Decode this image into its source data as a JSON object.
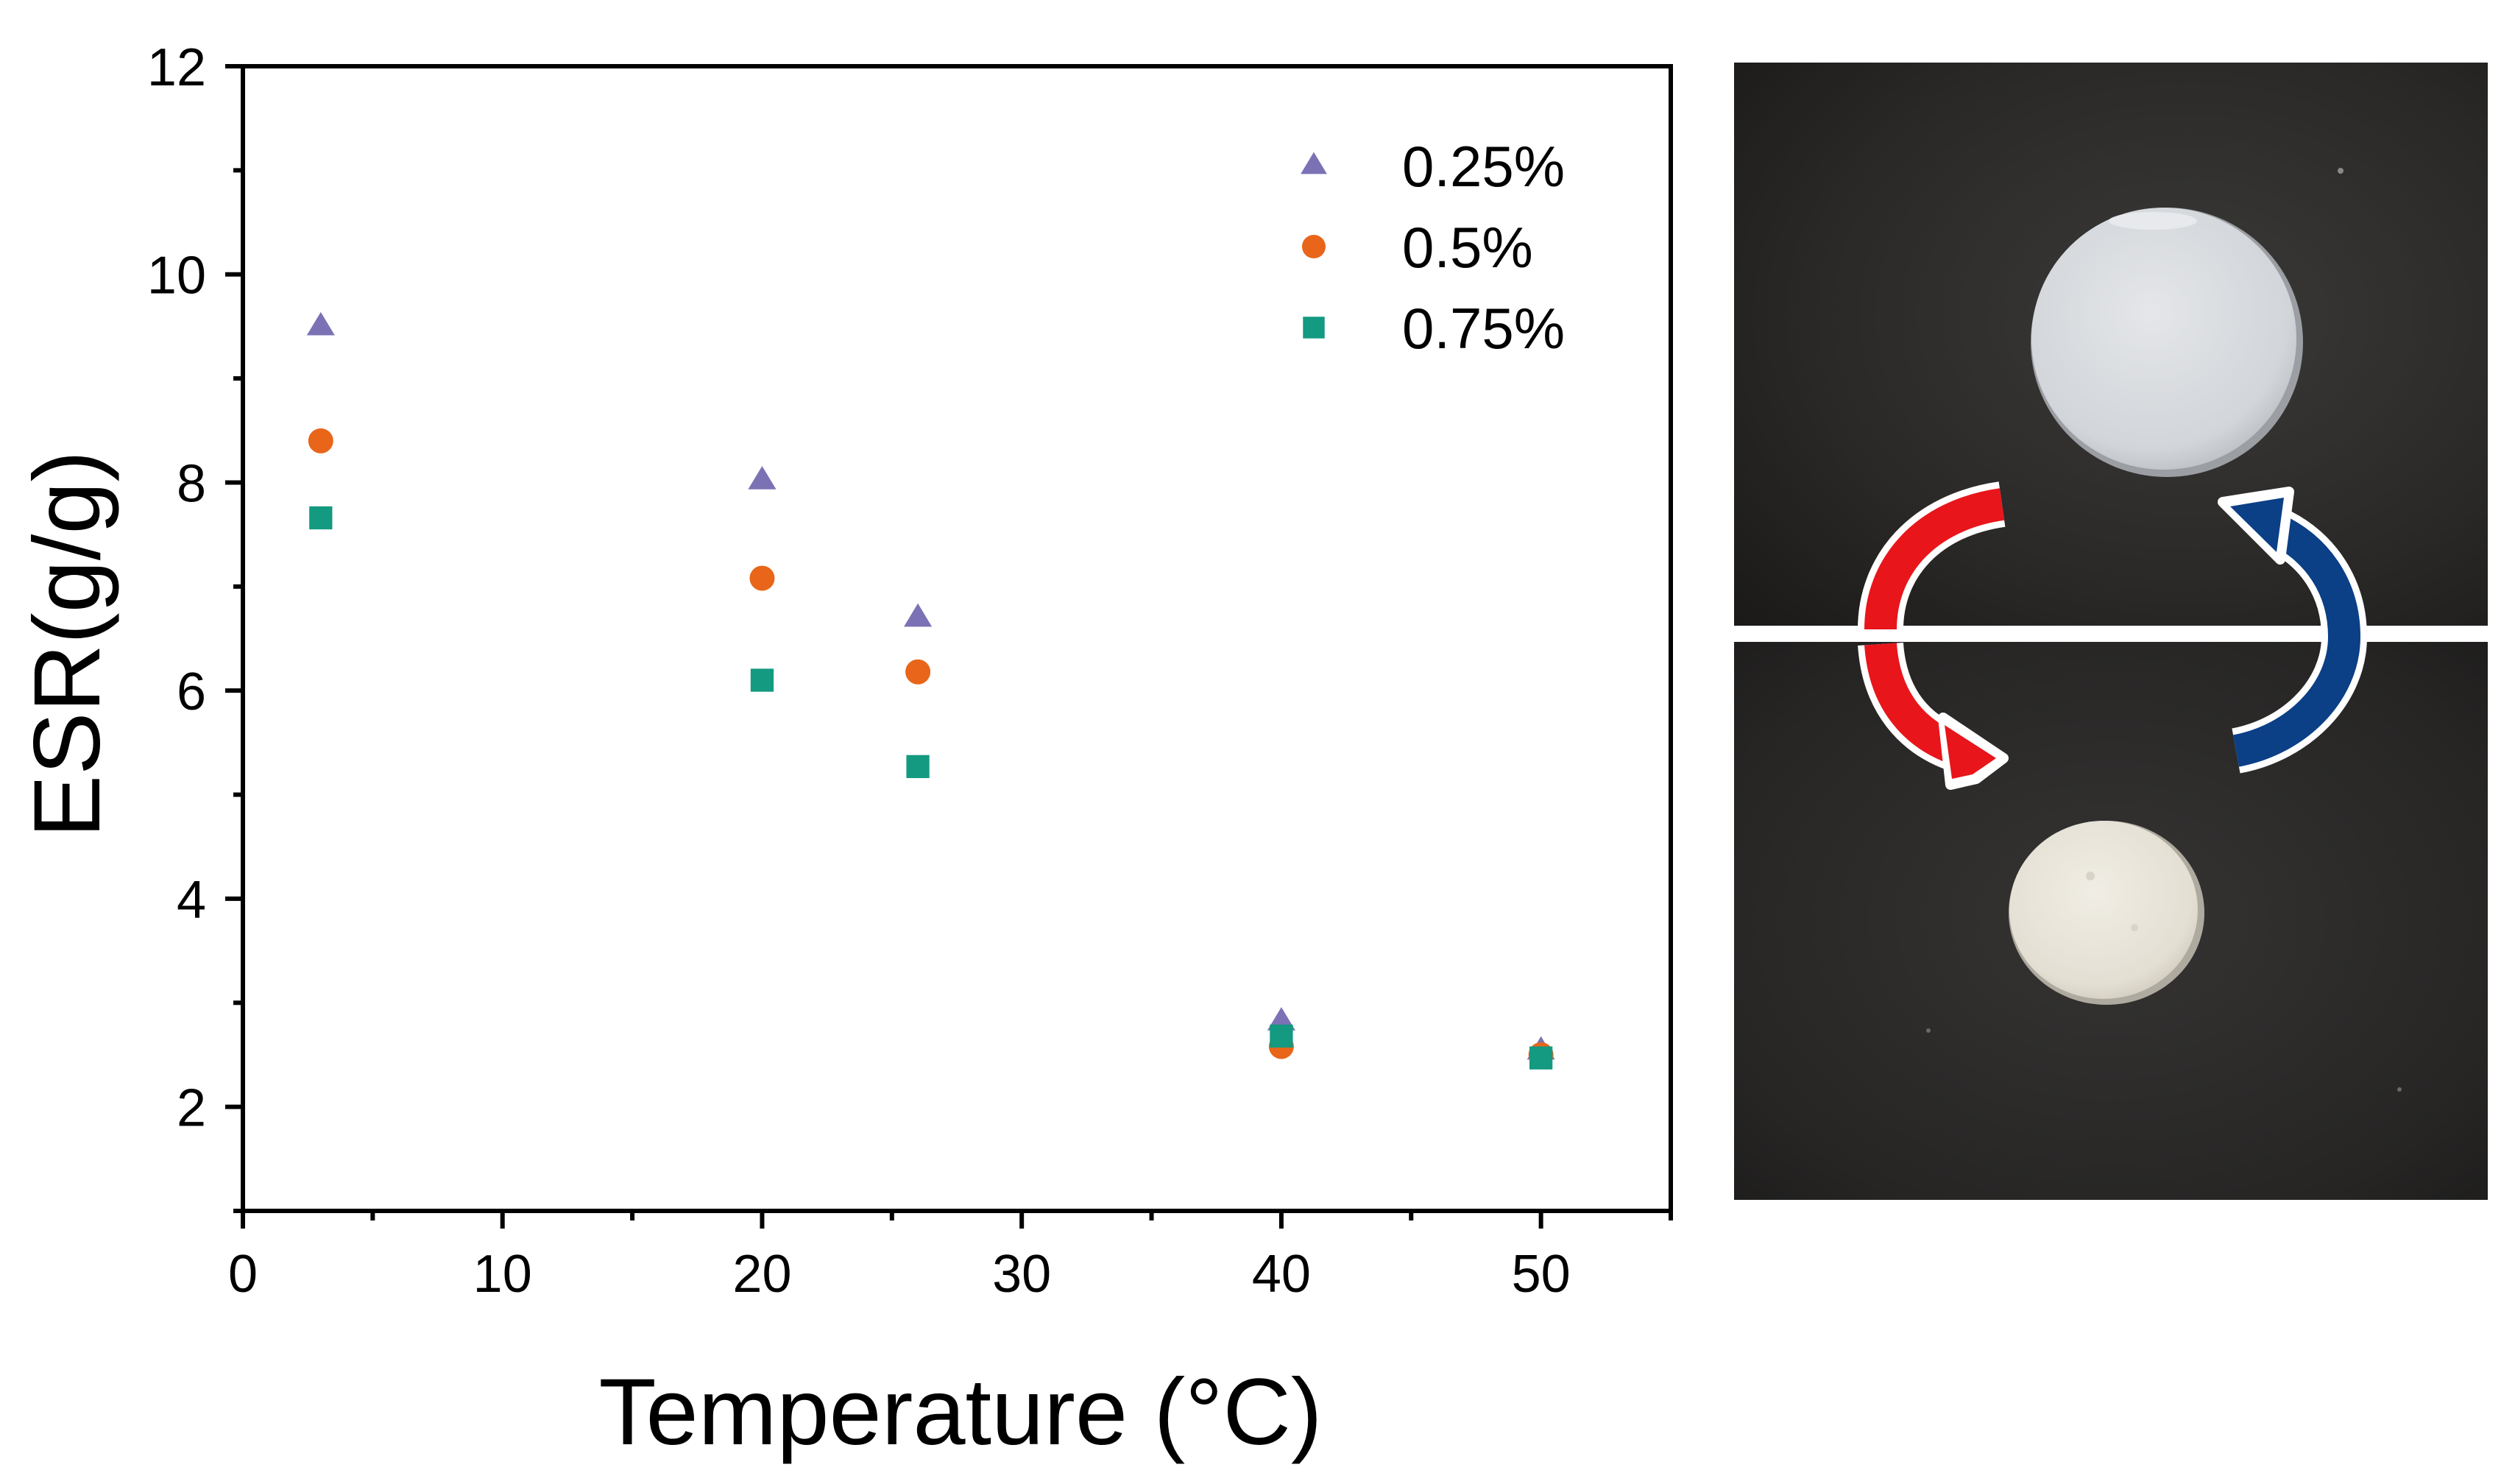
{
  "chart_data": {
    "type": "scatter",
    "xlabel": "Temperature (°C)",
    "ylabel": "ESR(g/g)",
    "xlim": [
      0,
      55
    ],
    "ylim": [
      1,
      12
    ],
    "x_ticks": [
      0,
      10,
      20,
      30,
      40,
      50
    ],
    "y_ticks": [
      2,
      4,
      6,
      8,
      10,
      12
    ],
    "grid": false,
    "legend_position": "top-right",
    "series": [
      {
        "name": "0.25%",
        "marker": "triangle",
        "color": "#7b72b5",
        "points": [
          [
            3,
            9.5
          ],
          [
            20,
            8.02
          ],
          [
            26,
            6.7
          ],
          [
            40,
            2.82
          ],
          [
            50,
            2.54
          ]
        ]
      },
      {
        "name": "0.5%",
        "marker": "circle",
        "color": "#e8651a",
        "points": [
          [
            3,
            8.4
          ],
          [
            20,
            7.08
          ],
          [
            26,
            6.18
          ],
          [
            40,
            2.58
          ],
          [
            50,
            2.5
          ]
        ]
      },
      {
        "name": "0.75%",
        "marker": "square",
        "color": "#139a80",
        "points": [
          [
            3,
            7.66
          ],
          [
            20,
            6.1
          ],
          [
            26,
            5.27
          ],
          [
            40,
            2.68
          ],
          [
            50,
            2.47
          ]
        ]
      }
    ]
  },
  "photos": {
    "top": {
      "description": "swollen-disc-photo"
    },
    "bottom": {
      "description": "shrunken-disc-photo"
    },
    "arrows": {
      "heat_color": "#e8151b",
      "cool_color": "#0b3f86"
    }
  }
}
